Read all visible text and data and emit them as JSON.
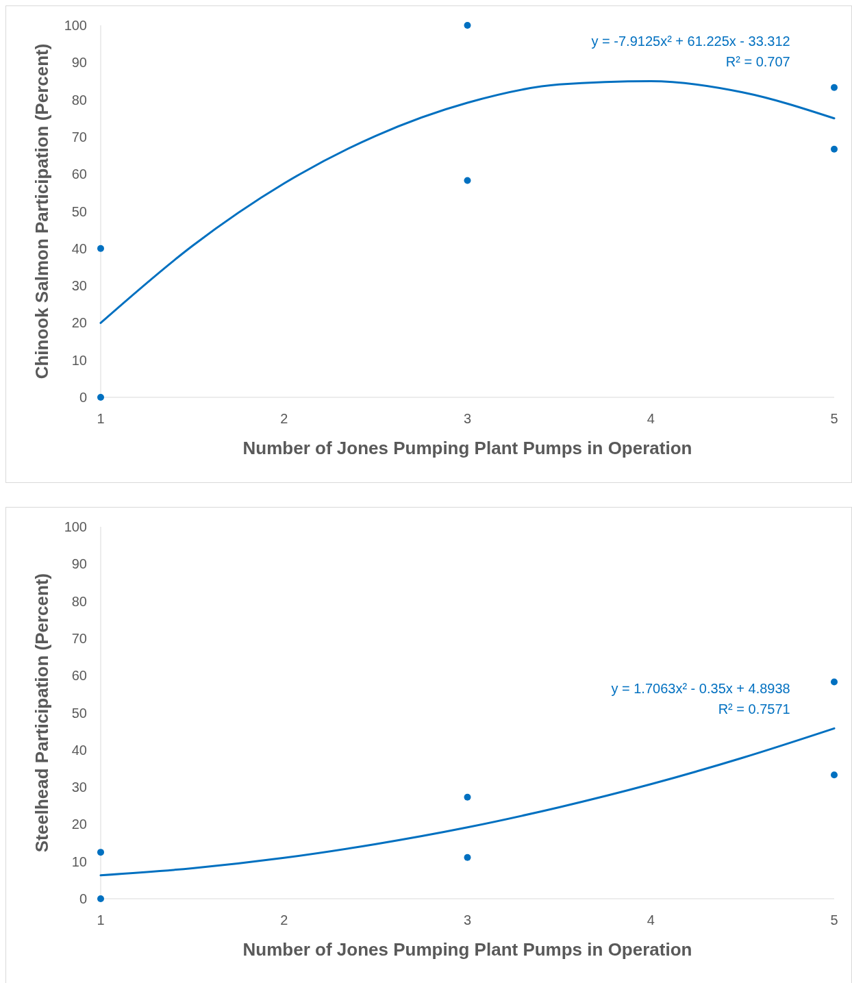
{
  "chart_data": [
    {
      "type": "scatter",
      "xlabel": "Number of Jones Pumping Plant Pumps in Operation",
      "ylabel": "Chinook Salmon Participation (Percent)",
      "xlim": [
        1,
        5
      ],
      "xticks": [
        1,
        2,
        3,
        4,
        5
      ],
      "ylim": [
        0,
        100
      ],
      "yticks": [
        0,
        10,
        20,
        30,
        40,
        50,
        60,
        70,
        80,
        90,
        100
      ],
      "grid": false,
      "annotations": [
        "y = -7.9125x² + 61.225x - 33.312",
        "R² = 0.707"
      ],
      "series": [
        {
          "color": "#0070c0",
          "marker": "circle",
          "x": [
            1,
            1,
            3,
            3,
            5,
            5
          ],
          "values": [
            40,
            0,
            100,
            58.3,
            83.3,
            66.7
          ]
        },
        {
          "type": "line",
          "color": "#0070c0",
          "marker": "none",
          "line_style": "solid",
          "x": [
            1,
            1.5,
            2,
            2.5,
            3,
            3.5,
            4,
            4.5,
            5
          ],
          "values": [
            20,
            40.7,
            57.5,
            70.3,
            79.2,
            84.1,
            85,
            82,
            75
          ]
        }
      ]
    },
    {
      "type": "scatter",
      "xlabel": "Number of Jones Pumping Plant Pumps in Operation",
      "ylabel": "Steelhead Participation (Percent)",
      "xlim": [
        1,
        5
      ],
      "xticks": [
        1,
        2,
        3,
        4,
        5
      ],
      "ylim": [
        0,
        100
      ],
      "yticks": [
        0,
        10,
        20,
        30,
        40,
        50,
        60,
        70,
        80,
        90,
        100
      ],
      "grid": false,
      "annotations": [
        "y = 1.7063x² - 0.35x + 4.8938",
        "R² = 0.7571"
      ],
      "series": [
        {
          "color": "#0070c0",
          "marker": "circle",
          "x": [
            1,
            1,
            3,
            3,
            5,
            5
          ],
          "values": [
            12.5,
            0,
            27.3,
            11.1,
            58.3,
            33.3
          ]
        },
        {
          "type": "line",
          "color": "#0070c0",
          "marker": "none",
          "line_style": "solid",
          "x": [
            1,
            1.5,
            2,
            2.5,
            3,
            3.5,
            4,
            4.5,
            5
          ],
          "values": [
            6.3,
            8.2,
            11,
            14.7,
            19.2,
            24.6,
            30.8,
            37.9,
            45.8
          ]
        }
      ]
    }
  ]
}
